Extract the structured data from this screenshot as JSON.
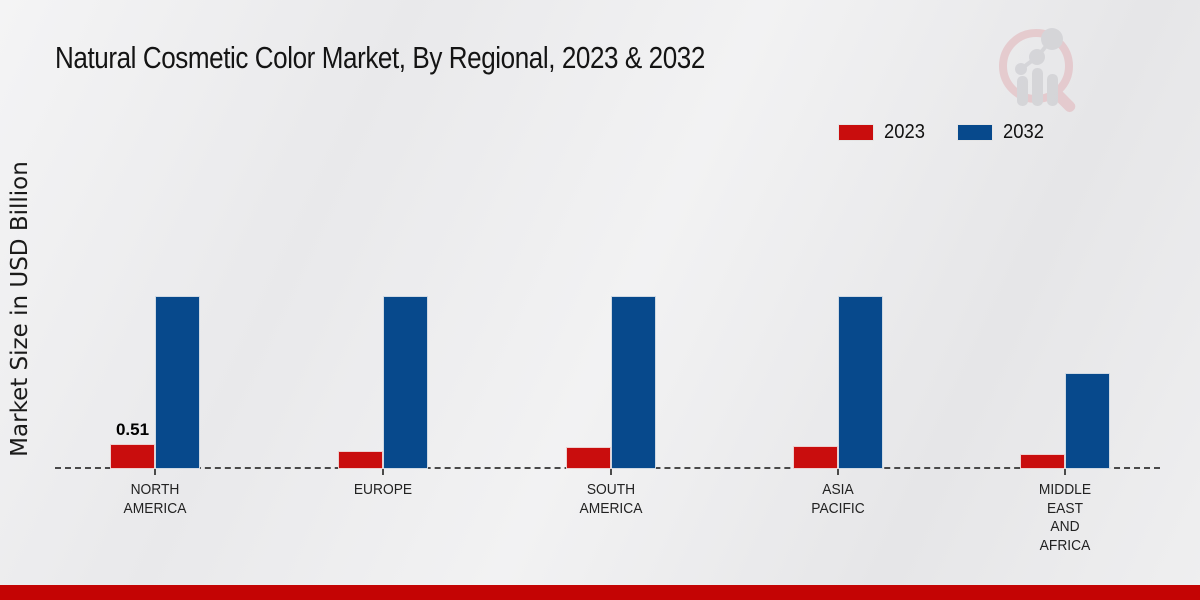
{
  "header": {
    "title": "Natural Cosmetic Color Market, By Regional, 2023 & 2032"
  },
  "axes": {
    "ylabel": "Market Size in USD Billion"
  },
  "legend": {
    "items": [
      {
        "label": "2023",
        "color": "#c90d0d"
      },
      {
        "label": "2032",
        "color": "#07498c"
      }
    ]
  },
  "colors": {
    "series_2023": "#c90d0d",
    "series_2032": "#07498c",
    "baseline": "#4a4a4a",
    "bottom_strip": "#c40404",
    "background": "#ebebed"
  },
  "watermark": {
    "name": "magnifier-bar-chart-logo"
  },
  "chart_data": {
    "type": "bar",
    "title": "Natural Cosmetic Color Market, By Regional, 2023 & 2032",
    "xlabel": "",
    "ylabel": "Market Size in USD Billion",
    "categories": [
      "NORTH AMERICA",
      "EUROPE",
      "SOUTH AMERICA",
      "ASIA PACIFIC",
      "MIDDLE EAST AND AFRICA"
    ],
    "category_lines": [
      [
        "NORTH",
        "AMERICA"
      ],
      [
        "EUROPE"
      ],
      [
        "SOUTH",
        "AMERICA"
      ],
      [
        "ASIA",
        "PACIFIC"
      ],
      [
        "MIDDLE",
        "EAST",
        "AND",
        "AFRICA"
      ]
    ],
    "series": [
      {
        "name": "2023",
        "color": "#c90d0d",
        "values": [
          0.51,
          0.37,
          0.45,
          0.47,
          0.31
        ],
        "data_labels": [
          "0.51",
          "",
          "",
          "",
          ""
        ]
      },
      {
        "name": "2032",
        "color": "#07498c",
        "values": [
          3.53,
          3.53,
          3.53,
          3.53,
          1.96
        ],
        "data_labels": [
          "",
          "",
          "",
          "",
          ""
        ]
      }
    ],
    "ylim": [
      0,
      3.7
    ],
    "grid": false,
    "y_ticks_shown": false,
    "baseline_style": "dashed",
    "legend_position": "top-right",
    "units": "USD Billion"
  }
}
